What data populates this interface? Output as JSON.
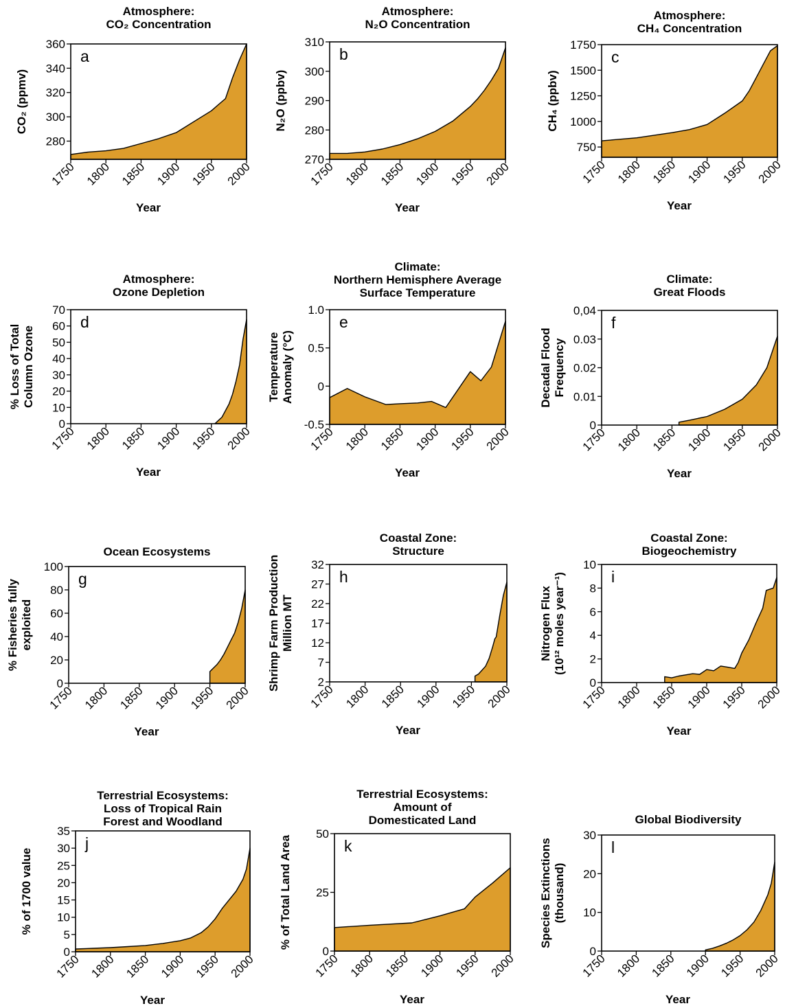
{
  "fill_color": "#dd9d2c",
  "chart_data": [
    {
      "type": "area",
      "letter": "a",
      "title": [
        "Atmosphere:",
        "CO₂ Concentration"
      ],
      "xlabel": "Year",
      "ylabel": [
        "CO₂ (ppmv)"
      ],
      "xlim": [
        1750,
        2000
      ],
      "ylim": [
        265,
        360
      ],
      "xticks": [
        1750,
        1800,
        1850,
        1900,
        1950,
        2000
      ],
      "yticks": [
        280,
        300,
        320,
        340,
        360
      ],
      "x": [
        1750,
        1775,
        1800,
        1825,
        1850,
        1875,
        1900,
        1925,
        1950,
        1960,
        1970,
        1980,
        1990,
        2000
      ],
      "y": [
        269,
        271,
        272,
        274,
        278,
        282,
        287,
        296,
        305,
        310,
        315,
        332,
        347,
        360
      ]
    },
    {
      "type": "area",
      "letter": "b",
      "title": [
        "Atmosphere:",
        "N₂O Concentration"
      ],
      "xlabel": "Year",
      "ylabel": [
        "N₂O  (ppbv)"
      ],
      "xlim": [
        1750,
        2000
      ],
      "ylim": [
        270,
        310
      ],
      "xticks": [
        1750,
        1800,
        1850,
        1900,
        1950,
        2000
      ],
      "yticks": [
        270,
        280,
        290,
        300,
        310
      ],
      "x": [
        1750,
        1775,
        1800,
        1825,
        1850,
        1875,
        1900,
        1925,
        1950,
        1960,
        1970,
        1980,
        1990,
        2000
      ],
      "y": [
        272,
        272,
        272.5,
        273.5,
        275,
        277,
        279.5,
        283,
        288,
        290.5,
        293.5,
        297,
        301,
        308
      ]
    },
    {
      "type": "area",
      "letter": "c",
      "title": [
        "Atmosphere:",
        "CH₄ Concentration"
      ],
      "xlabel": "Year",
      "ylabel": [
        "CH₄ (ppbv)"
      ],
      "xlim": [
        1750,
        2000
      ],
      "ylim": [
        650,
        1750
      ],
      "xticks": [
        1750,
        1800,
        1850,
        1900,
        1950,
        2000
      ],
      "yticks": [
        750,
        1000,
        1250,
        1500,
        1750
      ],
      "x": [
        1750,
        1800,
        1850,
        1875,
        1900,
        1925,
        1950,
        1960,
        1970,
        1980,
        1990,
        2000
      ],
      "y": [
        810,
        840,
        890,
        920,
        970,
        1080,
        1200,
        1300,
        1430,
        1560,
        1690,
        1740
      ]
    },
    {
      "type": "area",
      "letter": "d",
      "title": [
        "Atmosphere:",
        "Ozone Depletion"
      ],
      "xlabel": "Year",
      "ylabel": [
        "% Loss of Total",
        "Column Ozone"
      ],
      "xlim": [
        1750,
        2000
      ],
      "ylim": [
        0,
        70
      ],
      "xticks": [
        1750,
        1800,
        1850,
        1900,
        1950,
        2000
      ],
      "yticks": [
        0,
        10,
        20,
        30,
        40,
        50,
        60,
        70
      ],
      "x": [
        1955,
        1960,
        1965,
        1970,
        1975,
        1980,
        1985,
        1990,
        1995,
        2000
      ],
      "y": [
        0,
        2,
        4,
        8,
        12,
        18,
        26,
        36,
        52,
        64
      ]
    },
    {
      "type": "area",
      "letter": "e",
      "title": [
        "Climate:",
        "Northern Hemisphere Average",
        "Surface Temperature"
      ],
      "xlabel": "Year",
      "ylabel": [
        "Temperature",
        "Anomaly (°C)"
      ],
      "xlim": [
        1750,
        2000
      ],
      "ylim": [
        -0.5,
        1.0
      ],
      "xticks": [
        1750,
        1800,
        1850,
        1900,
        1950,
        2000
      ],
      "yticks": [
        "-0.5",
        "0",
        "0.5",
        "1.0"
      ],
      "yticks_values": [
        -0.5,
        0,
        0.5,
        1.0
      ],
      "x": [
        1750,
        1775,
        1800,
        1830,
        1850,
        1875,
        1895,
        1915,
        1950,
        1965,
        1980,
        2000
      ],
      "y": [
        -0.15,
        -0.03,
        -0.14,
        -0.24,
        -0.23,
        -0.22,
        -0.2,
        -0.28,
        0.19,
        0.07,
        0.25,
        0.85
      ]
    },
    {
      "type": "area",
      "letter": "f",
      "title": [
        "Climate:",
        "Great Floods"
      ],
      "xlabel": "Year",
      "ylabel": [
        "Decadal Flood",
        "Frequency"
      ],
      "xlim": [
        1750,
        2000
      ],
      "ylim": [
        0,
        0.04
      ],
      "xticks": [
        1750,
        1800,
        1850,
        1900,
        1950,
        2000
      ],
      "yticks": [
        "0",
        "0.01",
        "0.02",
        "0.03",
        "0,04"
      ],
      "yticks_values": [
        0,
        0.01,
        0.02,
        0.03,
        0.04
      ],
      "x": [
        1860,
        1875,
        1900,
        1925,
        1950,
        1970,
        1985,
        2000
      ],
      "y": [
        0.001,
        0.0017,
        0.003,
        0.0055,
        0.009,
        0.014,
        0.02,
        0.031
      ]
    },
    {
      "type": "area",
      "letter": "g",
      "title": [
        "Ocean Ecosystems"
      ],
      "xlabel": "Year",
      "ylabel": [
        "% Fisheries fully",
        "exploited"
      ],
      "xlim": [
        1750,
        2000
      ],
      "ylim": [
        0,
        100
      ],
      "xticks": [
        1750,
        1800,
        1850,
        1900,
        1950,
        2000
      ],
      "yticks": [
        0,
        20,
        40,
        60,
        80,
        100
      ],
      "x": [
        1950,
        1955,
        1960,
        1965,
        1970,
        1975,
        1980,
        1985,
        1990,
        1995,
        2000
      ],
      "y": [
        10,
        13,
        16,
        20,
        25,
        31,
        37,
        43,
        52,
        64,
        80
      ]
    },
    {
      "type": "area",
      "letter": "h",
      "title": [
        "Coastal Zone:",
        "Structure"
      ],
      "xlabel": "Year",
      "ylabel": [
        "Shrimp Farm Production",
        "Million MT"
      ],
      "xlim": [
        1750,
        2000
      ],
      "ylim": [
        2,
        32
      ],
      "xticks": [
        1750,
        1800,
        1850,
        1900,
        1950,
        2000
      ],
      "yticks": [
        2,
        7,
        12,
        17,
        22,
        27,
        32
      ],
      "x": [
        1955,
        1960,
        1965,
        1970,
        1975,
        1980,
        1983,
        1985,
        1990,
        1995,
        2000
      ],
      "y": [
        3.5,
        4,
        5,
        6,
        8,
        11,
        13,
        13.5,
        19,
        24,
        27.5
      ]
    },
    {
      "type": "area",
      "letter": "i",
      "title": [
        "Coastal Zone:",
        "Biogeochemistry"
      ],
      "xlabel": "Year",
      "ylabel": [
        "Nitrogen Flux",
        "(10¹² moles year⁻¹)"
      ],
      "xlim": [
        1750,
        2000
      ],
      "ylim": [
        0,
        10
      ],
      "xticks": [
        1750,
        1800,
        1850,
        1900,
        1950,
        2000
      ],
      "yticks": [
        0,
        2,
        4,
        6,
        8,
        10
      ],
      "x": [
        1840,
        1850,
        1860,
        1870,
        1880,
        1890,
        1900,
        1910,
        1920,
        1930,
        1940,
        1945,
        1950,
        1960,
        1970,
        1980,
        1985,
        1990,
        1995,
        2000
      ],
      "y": [
        0.5,
        0.4,
        0.55,
        0.65,
        0.75,
        0.7,
        1.1,
        1.0,
        1.4,
        1.3,
        1.2,
        1.7,
        2.5,
        3.6,
        5.0,
        6.3,
        7.8,
        7.9,
        8.0,
        8.9
      ]
    },
    {
      "type": "area",
      "letter": "j",
      "title": [
        "Terrestrial Ecosystems:",
        "Loss of Tropical Rain",
        "Forest and Woodland"
      ],
      "xlabel": "Year",
      "ylabel": [
        "% of 1700 value"
      ],
      "xlim": [
        1750,
        2000
      ],
      "ylim": [
        0,
        35
      ],
      "xticks": [
        1750,
        1800,
        1850,
        1900,
        1950,
        2000
      ],
      "yticks": [
        0,
        5,
        10,
        15,
        20,
        25,
        30,
        35
      ],
      "x": [
        1750,
        1775,
        1800,
        1825,
        1850,
        1875,
        1900,
        1915,
        1930,
        1940,
        1950,
        1960,
        1970,
        1980,
        1990,
        1995,
        2000
      ],
      "y": [
        0.8,
        1.0,
        1.2,
        1.5,
        1.8,
        2.4,
        3.2,
        4.0,
        5.5,
        7.2,
        9.5,
        12.5,
        15,
        17.5,
        21,
        24,
        30
      ]
    },
    {
      "type": "area",
      "letter": "k",
      "title": [
        "Terrestrial Ecosystems:",
        "Amount of",
        "Domesticated Land"
      ],
      "xlabel": "Year",
      "ylabel": [
        "% of Total Land Area"
      ],
      "xlim": [
        1750,
        2000
      ],
      "ylim": [
        0,
        50
      ],
      "xticks": [
        1750,
        1800,
        1850,
        1900,
        1950,
        2000
      ],
      "yticks": [
        0,
        25,
        50
      ],
      "x": [
        1750,
        1800,
        1860,
        1900,
        1935,
        1950,
        1975,
        2000
      ],
      "y": [
        10,
        11,
        12,
        15,
        18,
        23,
        29,
        35.5
      ]
    },
    {
      "type": "area",
      "letter": "l",
      "title": [
        "Global Biodiversity"
      ],
      "xlabel": "Year",
      "ylabel": [
        "Species Extinctions",
        "(thousand)"
      ],
      "xlim": [
        1750,
        2000
      ],
      "ylim": [
        0,
        30
      ],
      "xticks": [
        1750,
        1800,
        1850,
        1900,
        1950,
        2000
      ],
      "yticks": [
        0,
        10,
        20,
        30
      ],
      "x": [
        1900,
        1910,
        1920,
        1930,
        1940,
        1950,
        1960,
        1970,
        1980,
        1990,
        1995,
        2000
      ],
      "y": [
        0.3,
        0.7,
        1.3,
        2.0,
        2.9,
        4.0,
        5.5,
        7.5,
        10.5,
        14.5,
        17.5,
        23
      ]
    }
  ]
}
